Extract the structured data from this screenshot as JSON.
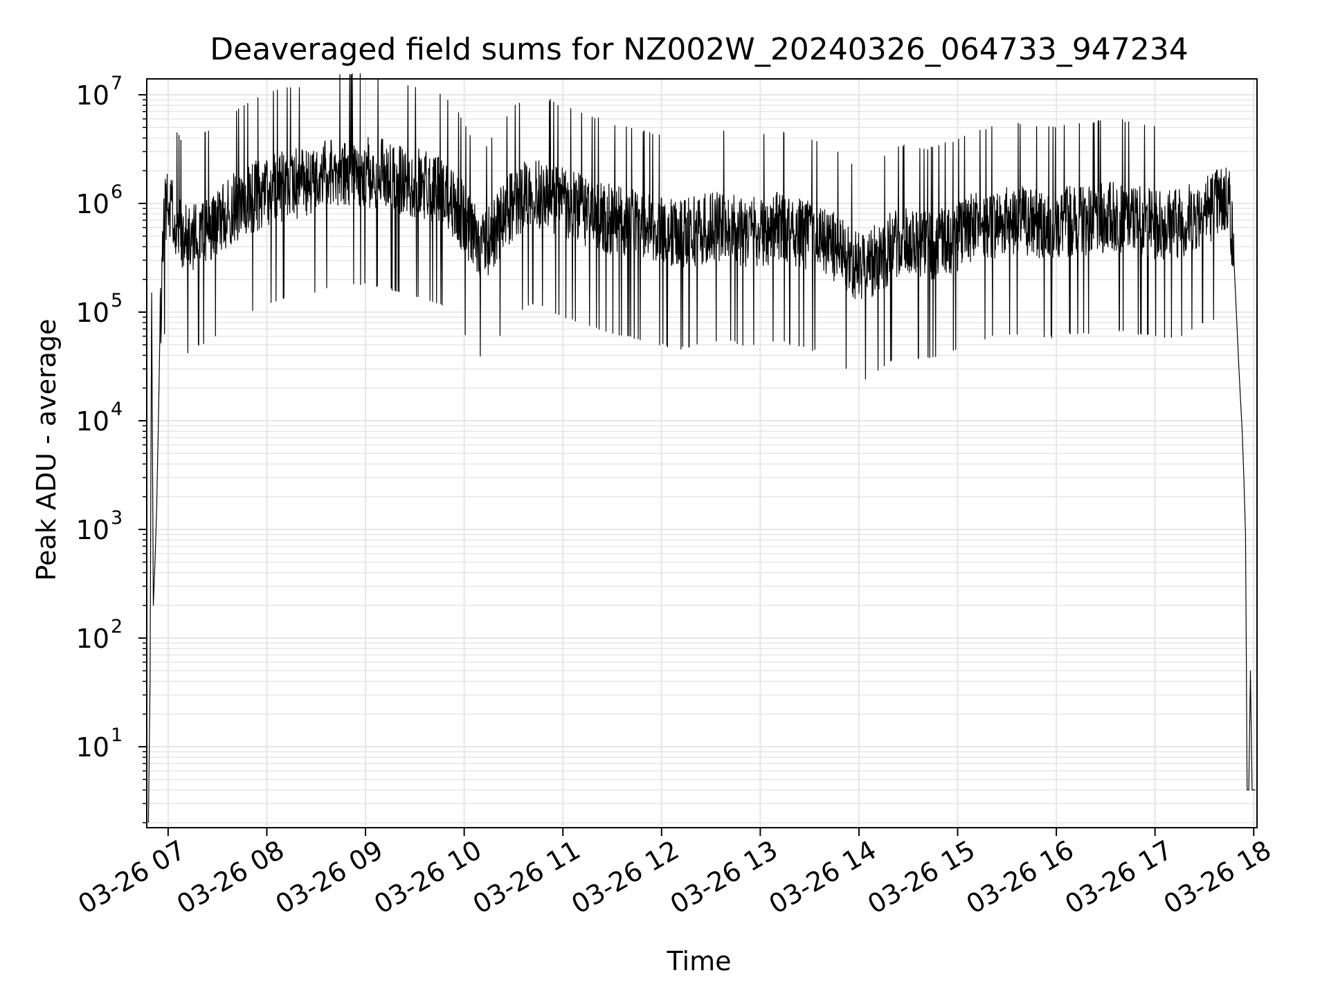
{
  "chart_data": {
    "type": "line",
    "title": "Deaveraged field sums for NZ002W_20240326_064733_947234",
    "xlabel": "Time",
    "ylabel": "Peak ADU - average",
    "yscale": "log",
    "ylim": [
      1.8,
      14000000
    ],
    "xlim": [
      "03-26 06:47",
      "03-26 18:02"
    ],
    "grid": true,
    "grid_minor": true,
    "legend": "none",
    "line_color": "#000000",
    "grid_color": "#e6e6e6",
    "x_ticks": [
      "03-26 07",
      "03-26 08",
      "03-26 09",
      "03-26 10",
      "03-26 11",
      "03-26 12",
      "03-26 13",
      "03-26 14",
      "03-26 15",
      "03-26 16",
      "03-26 17",
      "03-26 18"
    ],
    "y_ticks": [
      {
        "base": "10",
        "exp": "1",
        "value": 10
      },
      {
        "base": "10",
        "exp": "2",
        "value": 100
      },
      {
        "base": "10",
        "exp": "3",
        "value": 1000
      },
      {
        "base": "10",
        "exp": "4",
        "value": 10000
      },
      {
        "base": "10",
        "exp": "5",
        "value": 100000
      },
      {
        "base": "10",
        "exp": "6",
        "value": 1000000
      },
      {
        "base": "10",
        "exp": "7",
        "value": 10000000
      }
    ],
    "series": [
      {
        "x": [
          "06:48",
          "06:49",
          "06:50",
          "06:51",
          "06:52",
          "06:53",
          "06:54",
          "06:55",
          "06:56",
          "06:57",
          "06:58",
          "06:59",
          "07:00",
          "07:02",
          "07:05",
          "07:08",
          "07:12",
          "07:18",
          "07:25",
          "07:35",
          "07:45",
          "07:55",
          "08:05",
          "08:15",
          "08:25",
          "08:35",
          "08:45",
          "08:55",
          "09:05",
          "09:15",
          "09:25",
          "09:35",
          "09:45",
          "09:55",
          "10:05",
          "10:12",
          "10:20",
          "10:30",
          "10:40",
          "10:50",
          "11:00",
          "11:10",
          "11:20",
          "11:30",
          "11:40",
          "11:50",
          "12:00",
          "12:10",
          "12:20",
          "12:30",
          "12:40",
          "12:50",
          "13:00",
          "13:10",
          "13:20",
          "13:30",
          "13:40",
          "13:50",
          "14:00",
          "14:10",
          "14:20",
          "14:30",
          "14:40",
          "14:50",
          "15:00",
          "15:10",
          "15:20",
          "15:30",
          "15:40",
          "15:50",
          "16:00",
          "16:10",
          "16:20",
          "16:30",
          "16:40",
          "16:50",
          "17:00",
          "17:10",
          "17:20",
          "17:30",
          "17:40",
          "17:45",
          "17:48",
          "17:51",
          "17:53",
          "17:54",
          "17:55",
          "17:56",
          "17:57",
          "17:58",
          "17:59",
          "18:00",
          "18:01"
        ],
        "y": [
          2,
          40,
          150000,
          200,
          500,
          1500,
          8000,
          60000,
          150000,
          400000,
          800000,
          1000000,
          1200000,
          900000,
          600000,
          500000,
          450000,
          550000,
          600000,
          800000,
          1000000,
          1200000,
          1400000,
          1500000,
          1600000,
          1800000,
          2000000,
          2000000,
          1900000,
          1800000,
          1600000,
          1500000,
          1300000,
          1000000,
          500000,
          400000,
          600000,
          1000000,
          1300000,
          1200000,
          1000000,
          900000,
          800000,
          700000,
          650000,
          600000,
          550000,
          500000,
          550000,
          600000,
          600000,
          550000,
          550000,
          600000,
          550000,
          500000,
          450000,
          350000,
          250000,
          300000,
          400000,
          450000,
          400000,
          450000,
          500000,
          600000,
          650000,
          700000,
          700000,
          650000,
          650000,
          700000,
          700000,
          750000,
          750000,
          700000,
          650000,
          650000,
          700000,
          900000,
          1000000,
          1200000,
          300000,
          30000,
          8000,
          3000,
          900,
          4,
          4,
          50,
          4,
          4,
          4
        ]
      }
    ]
  }
}
